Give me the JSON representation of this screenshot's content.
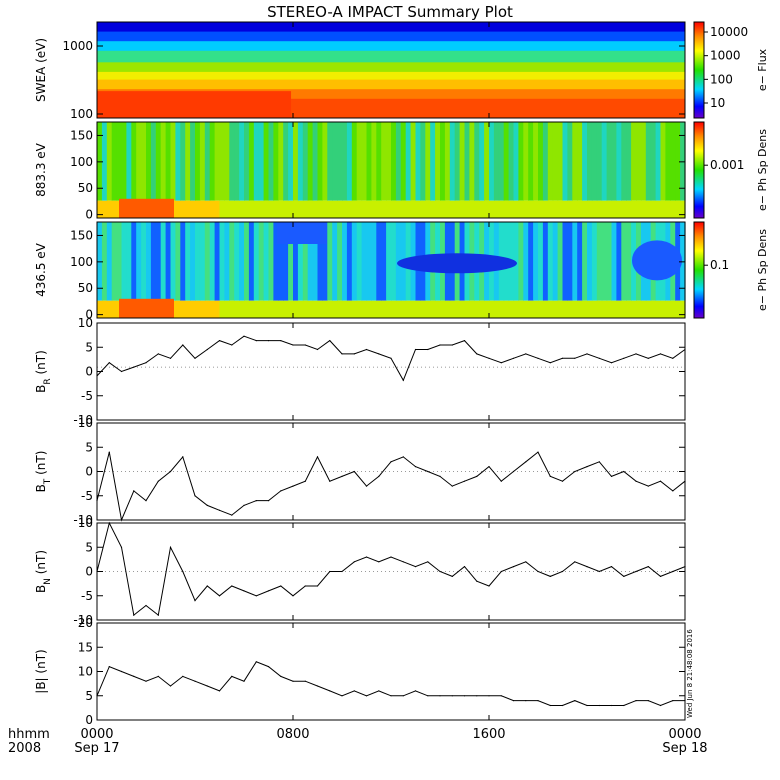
{
  "title": "STEREO-A IMPACT Summary Plot",
  "footer": {
    "time_label": "hhmm",
    "year_label": "2008",
    "tick_labels": [
      "0000",
      "0800",
      "1600",
      "0000"
    ],
    "date_labels": [
      "Sep 17",
      "",
      "",
      "Sep 18"
    ],
    "timestamp": "Wed Jun 8 21:48:08 2016"
  },
  "chart_data": [
    {
      "type": "heatmap",
      "ylabel": "SWEA (eV)",
      "y_scale": "log",
      "yticks": [
        "1000",
        "100"
      ],
      "ylim": [
        90,
        2000
      ],
      "colorbar": {
        "label": "e− Flux",
        "scale": "log",
        "ticks": [
          "10000",
          "1000",
          "100",
          "10"
        ]
      }
    },
    {
      "type": "heatmap",
      "ylabel": "883.3 eV",
      "ylim": [
        0,
        180
      ],
      "yticks": [
        "150",
        "100",
        "50",
        "0"
      ],
      "colorbar": {
        "label": "e− Ph Sp Dens",
        "scale": "log",
        "ticks": [
          "0.001"
        ]
      }
    },
    {
      "type": "heatmap",
      "ylabel": "436.5 eV",
      "ylim": [
        0,
        180
      ],
      "yticks": [
        "150",
        "100",
        "50",
        "0"
      ],
      "colorbar": {
        "label": "e− Ph Sp Dens",
        "scale": "log",
        "ticks": [
          "0.1"
        ]
      }
    },
    {
      "type": "line",
      "ylabel": "B",
      "ylabel_sub": "R",
      "ylabel_unit": " (nT)",
      "ylim": [
        -12,
        10
      ],
      "yticks": [
        "10",
        "5",
        "0",
        "-5",
        "-10"
      ],
      "x": [
        0,
        0.5,
        1,
        1.5,
        2,
        2.5,
        3,
        3.5,
        4,
        4.5,
        5,
        5.5,
        6,
        6.5,
        7,
        7.5,
        8,
        8.5,
        9,
        9.5,
        10,
        10.5,
        11,
        11.5,
        12,
        12.5,
        13,
        13.5,
        14,
        14.5,
        15,
        15.5,
        16,
        16.5,
        17,
        17.5,
        18,
        18.5,
        19,
        19.5,
        20,
        20.5,
        21,
        21.5,
        22,
        22.5,
        23,
        23.5,
        24
      ],
      "y": [
        -2,
        1,
        -1,
        0,
        1,
        3,
        2,
        5,
        2,
        4,
        6,
        5,
        7,
        6,
        6,
        6,
        5,
        5,
        4,
        6,
        3,
        3,
        4,
        3,
        2,
        -3,
        4,
        4,
        5,
        5,
        6,
        3,
        2,
        1,
        2,
        3,
        2,
        1,
        2,
        2,
        3,
        2,
        1,
        2,
        3,
        2,
        3,
        2,
        4
      ]
    },
    {
      "type": "line",
      "ylabel": "B",
      "ylabel_sub": "T",
      "ylabel_unit": " (nT)",
      "ylim": [
        -10,
        10
      ],
      "yticks": [
        "10",
        "5",
        "0",
        "-5",
        "-10"
      ],
      "x": [
        0,
        0.5,
        1,
        1.5,
        2,
        2.5,
        3,
        3.5,
        4,
        4.5,
        5,
        5.5,
        6,
        6.5,
        7,
        7.5,
        8,
        8.5,
        9,
        9.5,
        10,
        10.5,
        11,
        11.5,
        12,
        12.5,
        13,
        13.5,
        14,
        14.5,
        15,
        15.5,
        16,
        16.5,
        17,
        17.5,
        18,
        18.5,
        19,
        19.5,
        20,
        20.5,
        21,
        21.5,
        22,
        22.5,
        23,
        23.5,
        24
      ],
      "y": [
        -6,
        4,
        -10,
        -4,
        -6,
        -2,
        0,
        3,
        -5,
        -7,
        -8,
        -9,
        -7,
        -6,
        -6,
        -4,
        -3,
        -2,
        3,
        -2,
        -1,
        0,
        -3,
        -1,
        2,
        3,
        1,
        0,
        -1,
        -3,
        -2,
        -1,
        1,
        -2,
        0,
        2,
        4,
        -1,
        -2,
        0,
        1,
        2,
        -1,
        0,
        -2,
        -3,
        -2,
        -4,
        -2
      ]
    },
    {
      "type": "line",
      "ylabel": "B",
      "ylabel_sub": "N",
      "ylabel_unit": " (nT)",
      "ylim": [
        -10,
        10
      ],
      "yticks": [
        "10",
        "5",
        "0",
        "-5",
        "-10"
      ],
      "x": [
        0,
        0.5,
        1,
        1.5,
        2,
        2.5,
        3,
        3.5,
        4,
        4.5,
        5,
        5.5,
        6,
        6.5,
        7,
        7.5,
        8,
        8.5,
        9,
        9.5,
        10,
        10.5,
        11,
        11.5,
        12,
        12.5,
        13,
        13.5,
        14,
        14.5,
        15,
        15.5,
        16,
        16.5,
        17,
        17.5,
        18,
        18.5,
        19,
        19.5,
        20,
        20.5,
        21,
        21.5,
        22,
        22.5,
        23,
        23.5,
        24
      ],
      "y": [
        0,
        10,
        5,
        -9,
        -7,
        -9,
        5,
        0,
        -6,
        -3,
        -5,
        -3,
        -4,
        -5,
        -4,
        -3,
        -5,
        -3,
        -3,
        0,
        0,
        2,
        3,
        2,
        3,
        2,
        1,
        2,
        0,
        -1,
        1,
        -2,
        -3,
        0,
        1,
        2,
        0,
        -1,
        0,
        2,
        1,
        0,
        1,
        -1,
        0,
        1,
        -1,
        0,
        1
      ]
    },
    {
      "type": "line",
      "ylabel": "|B|",
      "ylabel_sub": "",
      "ylabel_unit": " (nT)",
      "ylim": [
        0,
        20
      ],
      "yticks": [
        "20",
        "15",
        "10",
        "5",
        "0"
      ],
      "x": [
        0,
        0.5,
        1,
        1.5,
        2,
        2.5,
        3,
        3.5,
        4,
        4.5,
        5,
        5.5,
        6,
        6.5,
        7,
        7.5,
        8,
        8.5,
        9,
        9.5,
        10,
        10.5,
        11,
        11.5,
        12,
        12.5,
        13,
        13.5,
        14,
        14.5,
        15,
        15.5,
        16,
        16.5,
        17,
        17.5,
        18,
        18.5,
        19,
        19.5,
        20,
        20.5,
        21,
        21.5,
        22,
        22.5,
        23,
        23.5,
        24
      ],
      "y": [
        5,
        11,
        10,
        9,
        8,
        9,
        7,
        9,
        8,
        7,
        6,
        9,
        8,
        12,
        11,
        9,
        8,
        8,
        7,
        6,
        5,
        6,
        5,
        6,
        5,
        5,
        6,
        5,
        5,
        5,
        5,
        5,
        5,
        5,
        4,
        4,
        4,
        3,
        3,
        4,
        3,
        3,
        3,
        3,
        4,
        4,
        3,
        4,
        4
      ]
    }
  ]
}
